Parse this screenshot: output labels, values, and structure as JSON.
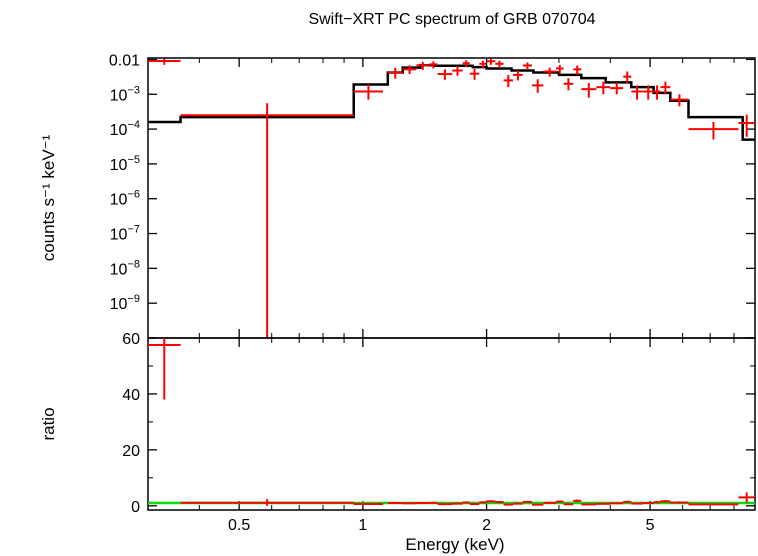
{
  "chart_data": [
    {
      "type": "line",
      "panel": "spectrum",
      "title": "Swift−XRT PC spectrum of GRB 070704",
      "ylabel": "counts s⁻¹ keV⁻¹",
      "xlabel": "",
      "xscale": "log",
      "yscale": "log",
      "xlim": [
        0.3,
        9.0
      ],
      "ylim": [
        1e-10,
        0.011
      ],
      "y_tick_labels": [
        {
          "value": 0.01,
          "base": "0.01",
          "exp": ""
        },
        {
          "value": 0.001,
          "base": "10",
          "exp": "−3"
        },
        {
          "value": 0.0001,
          "base": "10",
          "exp": "−4"
        },
        {
          "value": 1e-05,
          "base": "10",
          "exp": "−5"
        },
        {
          "value": 1e-06,
          "base": "10",
          "exp": "−6"
        },
        {
          "value": 1e-07,
          "base": "10",
          "exp": "−7"
        },
        {
          "value": 1e-08,
          "base": "10",
          "exp": "−8"
        },
        {
          "value": 1e-09,
          "base": "10",
          "exp": "−9"
        }
      ],
      "series": [
        {
          "color": "#ff0000",
          "style": "errorbar",
          "points": [
            {
              "xlo": 0.3,
              "xhi": 0.36,
              "y": 0.009,
              "ylo": 0.007,
              "yhi": 0.0105
            },
            {
              "xlo": 0.36,
              "xhi": 0.95,
              "y": 0.00025,
              "ylo": 1e-10,
              "yhi": 0.00055
            },
            {
              "xlo": 0.95,
              "xhi": 1.12,
              "y": 0.0012,
              "ylo": 0.0007,
              "yhi": 0.0019
            },
            {
              "xlo": 1.15,
              "xhi": 1.25,
              "y": 0.0042,
              "ylo": 0.0028,
              "yhi": 0.0058
            },
            {
              "xlo": 1.25,
              "xhi": 1.35,
              "y": 0.0052,
              "ylo": 0.0038,
              "yhi": 0.0068
            },
            {
              "xlo": 1.35,
              "xhi": 1.45,
              "y": 0.0068,
              "ylo": 0.005,
              "yhi": 0.0085
            },
            {
              "xlo": 1.45,
              "xhi": 1.52,
              "y": 0.0072,
              "ylo": 0.0055,
              "yhi": 0.0088
            },
            {
              "xlo": 1.52,
              "xhi": 1.65,
              "y": 0.0038,
              "ylo": 0.0026,
              "yhi": 0.0052
            },
            {
              "xlo": 1.65,
              "xhi": 1.75,
              "y": 0.0048,
              "ylo": 0.0034,
              "yhi": 0.0064
            },
            {
              "xlo": 1.75,
              "xhi": 1.82,
              "y": 0.0078,
              "ylo": 0.006,
              "yhi": 0.0095
            },
            {
              "xlo": 1.82,
              "xhi": 1.92,
              "y": 0.0039,
              "ylo": 0.0026,
              "yhi": 0.0054
            },
            {
              "xlo": 1.92,
              "xhi": 2.0,
              "y": 0.0075,
              "ylo": 0.0058,
              "yhi": 0.0092
            },
            {
              "xlo": 2.0,
              "xhi": 2.1,
              "y": 0.0089,
              "ylo": 0.007,
              "yhi": 0.0105
            },
            {
              "xlo": 2.1,
              "xhi": 2.2,
              "y": 0.0075,
              "ylo": 0.0056,
              "yhi": 0.0092
            },
            {
              "xlo": 2.2,
              "xhi": 2.32,
              "y": 0.0025,
              "ylo": 0.0016,
              "yhi": 0.0036
            },
            {
              "xlo": 2.32,
              "xhi": 2.45,
              "y": 0.0036,
              "ylo": 0.0025,
              "yhi": 0.0048
            },
            {
              "xlo": 2.45,
              "xhi": 2.58,
              "y": 0.0067,
              "ylo": 0.005,
              "yhi": 0.0082
            },
            {
              "xlo": 2.58,
              "xhi": 2.75,
              "y": 0.0018,
              "ylo": 0.0011,
              "yhi": 0.0027
            },
            {
              "xlo": 2.75,
              "xhi": 2.95,
              "y": 0.0045,
              "ylo": 0.0032,
              "yhi": 0.0058
            },
            {
              "xlo": 2.95,
              "xhi": 3.08,
              "y": 0.0055,
              "ylo": 0.004,
              "yhi": 0.0069
            },
            {
              "xlo": 3.08,
              "xhi": 3.25,
              "y": 0.002,
              "ylo": 0.0013,
              "yhi": 0.0029
            },
            {
              "xlo": 3.25,
              "xhi": 3.4,
              "y": 0.0052,
              "ylo": 0.0037,
              "yhi": 0.0067
            },
            {
              "xlo": 3.4,
              "xhi": 3.7,
              "y": 0.0014,
              "ylo": 0.0008,
              "yhi": 0.0021
            },
            {
              "xlo": 3.7,
              "xhi": 4.0,
              "y": 0.0016,
              "ylo": 0.001,
              "yhi": 0.0023
            },
            {
              "xlo": 4.0,
              "xhi": 4.3,
              "y": 0.0015,
              "ylo": 0.001,
              "yhi": 0.0022
            },
            {
              "xlo": 4.3,
              "xhi": 4.5,
              "y": 0.0032,
              "ylo": 0.0021,
              "yhi": 0.0045
            },
            {
              "xlo": 4.5,
              "xhi": 4.8,
              "y": 0.0012,
              "ylo": 0.0007,
              "yhi": 0.0018
            },
            {
              "xlo": 4.8,
              "xhi": 5.1,
              "y": 0.0012,
              "ylo": 0.0007,
              "yhi": 0.0018
            },
            {
              "xlo": 5.1,
              "xhi": 5.3,
              "y": 0.0012,
              "ylo": 0.0007,
              "yhi": 0.0018
            },
            {
              "xlo": 5.3,
              "xhi": 5.6,
              "y": 0.0016,
              "ylo": 0.001,
              "yhi": 0.0023
            },
            {
              "xlo": 5.6,
              "xhi": 6.2,
              "y": 0.0007,
              "ylo": 0.00045,
              "yhi": 0.001
            },
            {
              "xlo": 6.2,
              "xhi": 8.2,
              "y": 0.0001,
              "ylo": 5e-05,
              "yhi": 0.00016
            },
            {
              "xlo": 8.2,
              "xhi": 9.0,
              "y": 0.00015,
              "ylo": 6e-05,
              "yhi": 0.00026
            }
          ]
        },
        {
          "color": "#000000",
          "style": "step",
          "steps": [
            {
              "xlo": 0.3,
              "xhi": 0.36,
              "y": 0.00016
            },
            {
              "xlo": 0.36,
              "xhi": 0.95,
              "y": 0.00022
            },
            {
              "xlo": 0.95,
              "xhi": 1.15,
              "y": 0.0019
            },
            {
              "xlo": 1.15,
              "xhi": 1.25,
              "y": 0.0042
            },
            {
              "xlo": 1.25,
              "xhi": 1.38,
              "y": 0.0058
            },
            {
              "xlo": 1.38,
              "xhi": 1.5,
              "y": 0.0068
            },
            {
              "xlo": 1.5,
              "xhi": 1.85,
              "y": 0.0066
            },
            {
              "xlo": 1.85,
              "xhi": 2.0,
              "y": 0.006
            },
            {
              "xlo": 2.0,
              "xhi": 2.3,
              "y": 0.0055
            },
            {
              "xlo": 2.3,
              "xhi": 2.6,
              "y": 0.0048
            },
            {
              "xlo": 2.6,
              "xhi": 3.0,
              "y": 0.0042
            },
            {
              "xlo": 3.0,
              "xhi": 3.4,
              "y": 0.0036
            },
            {
              "xlo": 3.4,
              "xhi": 3.9,
              "y": 0.0029
            },
            {
              "xlo": 3.9,
              "xhi": 4.5,
              "y": 0.0022
            },
            {
              "xlo": 4.5,
              "xhi": 5.1,
              "y": 0.0016
            },
            {
              "xlo": 5.1,
              "xhi": 5.6,
              "y": 0.0011
            },
            {
              "xlo": 5.6,
              "xhi": 6.2,
              "y": 0.00065
            },
            {
              "xlo": 6.2,
              "xhi": 8.4,
              "y": 0.00022
            },
            {
              "xlo": 8.4,
              "xhi": 9.0,
              "y": 5e-05
            }
          ]
        }
      ]
    },
    {
      "type": "line",
      "panel": "ratio",
      "title": "",
      "ylabel": "ratio",
      "xlabel": "Energy (keV)",
      "xscale": "log",
      "yscale": "linear",
      "xlim": [
        0.3,
        9.0
      ],
      "ylim": [
        -1.5,
        60
      ],
      "y_ticks": [
        0,
        20,
        40,
        60
      ],
      "x_ticks": [
        {
          "value": 0.5,
          "label": "0.5"
        },
        {
          "value": 1,
          "label": "1"
        },
        {
          "value": 2,
          "label": "2"
        },
        {
          "value": 5,
          "label": "5"
        }
      ],
      "series": [
        {
          "color": "#ff0000",
          "style": "errorbar",
          "points": [
            {
              "xlo": 0.3,
              "xhi": 0.36,
              "y": 57.5,
              "ylo": 38,
              "yhi": 60
            },
            {
              "xlo": 0.36,
              "xhi": 0.95,
              "y": 1.1,
              "ylo": 0.0,
              "yhi": 2.4
            },
            {
              "xlo": 0.95,
              "xhi": 1.12,
              "y": 0.65,
              "ylo": 0.35,
              "yhi": 1.0
            },
            {
              "xlo": 1.15,
              "xhi": 1.25,
              "y": 1.0,
              "ylo": 0.6,
              "yhi": 1.4
            },
            {
              "xlo": 1.25,
              "xhi": 1.35,
              "y": 0.9,
              "ylo": 0.6,
              "yhi": 1.2
            },
            {
              "xlo": 1.35,
              "xhi": 1.45,
              "y": 1.0,
              "ylo": 0.7,
              "yhi": 1.3
            },
            {
              "xlo": 1.45,
              "xhi": 1.52,
              "y": 1.05,
              "ylo": 0.8,
              "yhi": 1.3
            },
            {
              "xlo": 1.52,
              "xhi": 1.65,
              "y": 0.6,
              "ylo": 0.4,
              "yhi": 0.8
            },
            {
              "xlo": 1.65,
              "xhi": 1.75,
              "y": 0.75,
              "ylo": 0.5,
              "yhi": 1.0
            },
            {
              "xlo": 1.75,
              "xhi": 1.82,
              "y": 1.2,
              "ylo": 0.9,
              "yhi": 1.5
            },
            {
              "xlo": 1.82,
              "xhi": 1.92,
              "y": 0.65,
              "ylo": 0.4,
              "yhi": 0.9
            },
            {
              "xlo": 1.92,
              "xhi": 2.0,
              "y": 1.25,
              "ylo": 0.95,
              "yhi": 1.55
            },
            {
              "xlo": 2.0,
              "xhi": 2.1,
              "y": 1.6,
              "ylo": 1.2,
              "yhi": 2.0
            },
            {
              "xlo": 2.1,
              "xhi": 2.2,
              "y": 1.35,
              "ylo": 1.0,
              "yhi": 1.7
            },
            {
              "xlo": 2.2,
              "xhi": 2.32,
              "y": 0.45,
              "ylo": 0.25,
              "yhi": 0.65
            },
            {
              "xlo": 2.32,
              "xhi": 2.45,
              "y": 0.75,
              "ylo": 0.5,
              "yhi": 1.0
            },
            {
              "xlo": 2.45,
              "xhi": 2.58,
              "y": 1.4,
              "ylo": 1.05,
              "yhi": 1.75
            },
            {
              "xlo": 2.58,
              "xhi": 2.75,
              "y": 0.4,
              "ylo": 0.2,
              "yhi": 0.6
            },
            {
              "xlo": 2.75,
              "xhi": 2.95,
              "y": 1.05,
              "ylo": 0.75,
              "yhi": 1.35
            },
            {
              "xlo": 2.95,
              "xhi": 3.08,
              "y": 1.5,
              "ylo": 1.1,
              "yhi": 1.9
            },
            {
              "xlo": 3.08,
              "xhi": 3.25,
              "y": 0.55,
              "ylo": 0.35,
              "yhi": 0.75
            },
            {
              "xlo": 3.25,
              "xhi": 3.4,
              "y": 1.8,
              "ylo": 1.35,
              "yhi": 2.25
            },
            {
              "xlo": 3.4,
              "xhi": 3.7,
              "y": 0.5,
              "ylo": 0.3,
              "yhi": 0.7
            },
            {
              "xlo": 3.7,
              "xhi": 4.0,
              "y": 0.7,
              "ylo": 0.45,
              "yhi": 0.95
            },
            {
              "xlo": 4.0,
              "xhi": 4.3,
              "y": 0.9,
              "ylo": 0.6,
              "yhi": 1.2
            },
            {
              "xlo": 4.3,
              "xhi": 4.5,
              "y": 1.4,
              "ylo": 1.0,
              "yhi": 1.8
            },
            {
              "xlo": 4.5,
              "xhi": 4.8,
              "y": 0.8,
              "ylo": 0.5,
              "yhi": 1.1
            },
            {
              "xlo": 4.8,
              "xhi": 5.1,
              "y": 1.0,
              "ylo": 0.65,
              "yhi": 1.35
            },
            {
              "xlo": 5.1,
              "xhi": 5.3,
              "y": 1.3,
              "ylo": 0.9,
              "yhi": 1.7
            },
            {
              "xlo": 5.3,
              "xhi": 5.6,
              "y": 1.6,
              "ylo": 1.1,
              "yhi": 2.1
            },
            {
              "xlo": 5.6,
              "xhi": 6.2,
              "y": 1.2,
              "ylo": 0.8,
              "yhi": 1.6
            },
            {
              "xlo": 6.2,
              "xhi": 8.2,
              "y": 0.5,
              "ylo": 0.25,
              "yhi": 0.8
            },
            {
              "xlo": 8.2,
              "xhi": 9.0,
              "y": 3.0,
              "ylo": 1.2,
              "yhi": 4.8
            }
          ]
        },
        {
          "color": "#00dd00",
          "style": "line",
          "values": [
            [
              0.3,
              1.0
            ],
            [
              9.0,
              1.0
            ]
          ]
        }
      ]
    }
  ]
}
